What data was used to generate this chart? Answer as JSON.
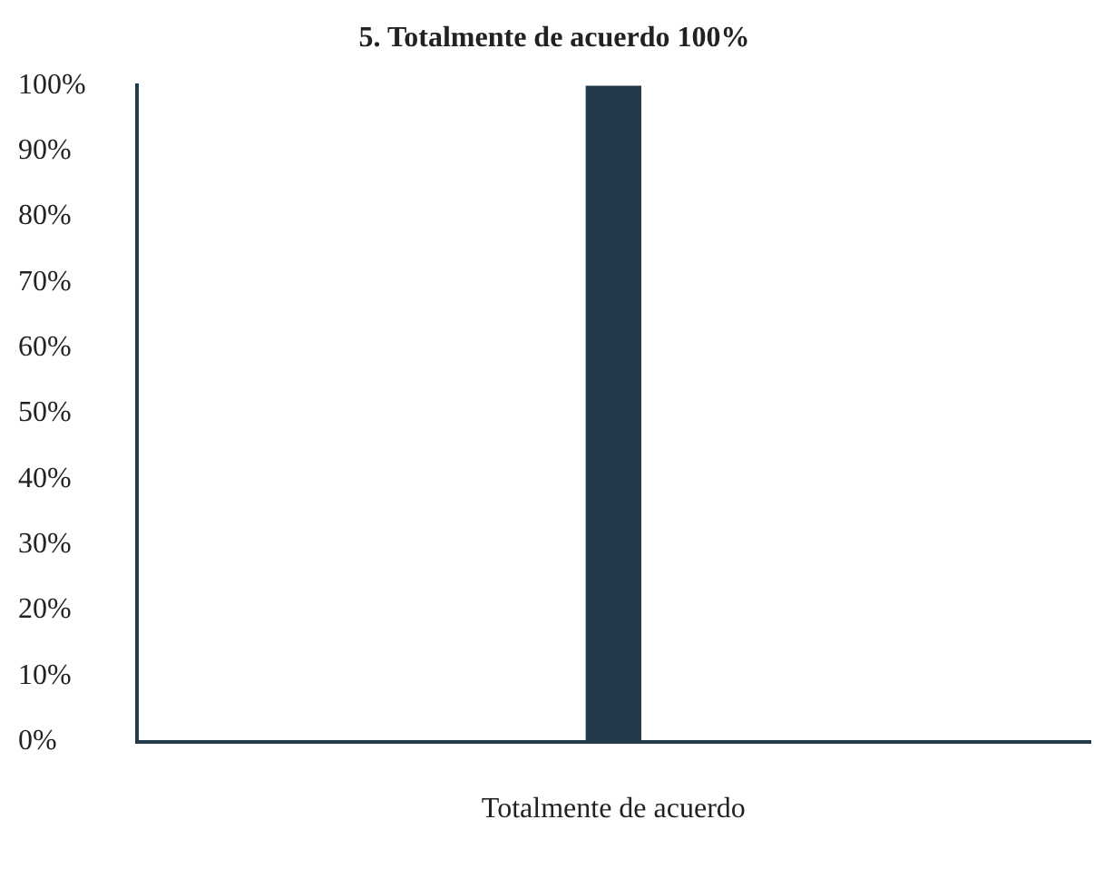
{
  "chart_data": {
    "type": "bar",
    "title": "5. Totalmente de acuerdo 100%",
    "categories": [
      "Totalmente de acuerdo"
    ],
    "values": [
      100
    ],
    "color": "#233a4a",
    "ylim": [
      0,
      100
    ],
    "yticks": [
      {
        "value": 0,
        "label": "0%"
      },
      {
        "value": 10,
        "label": "10%"
      },
      {
        "value": 20,
        "label": "20%"
      },
      {
        "value": 30,
        "label": "30%"
      },
      {
        "value": 40,
        "label": "40%"
      },
      {
        "value": 50,
        "label": "50%"
      },
      {
        "value": 60,
        "label": "60%"
      },
      {
        "value": 70,
        "label": "70%"
      },
      {
        "value": 80,
        "label": "80%"
      },
      {
        "value": 90,
        "label": "90%"
      },
      {
        "value": 100,
        "label": "100%"
      }
    ],
    "grid": false,
    "legend": false
  }
}
